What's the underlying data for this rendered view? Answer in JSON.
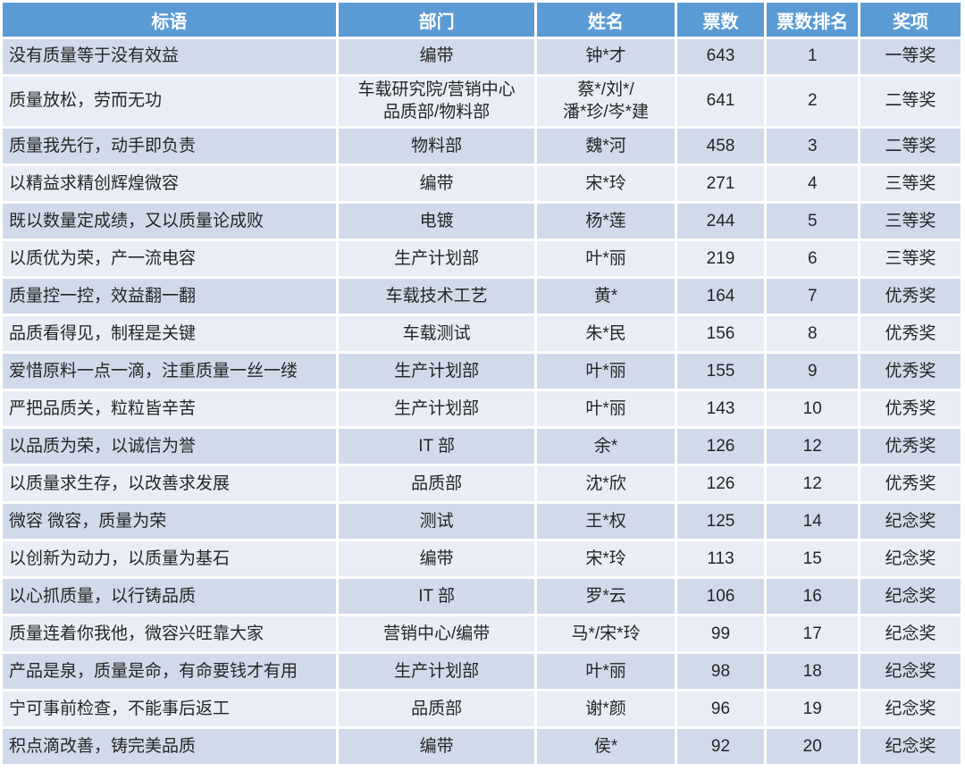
{
  "table": {
    "columns": [
      "标语",
      "部门",
      "姓名",
      "票数",
      "票数排名",
      "奖项"
    ],
    "rows": [
      {
        "slogan": "没有质量等于没有效益",
        "department": "编带",
        "name": "钟*才",
        "votes": "643",
        "rank": "1",
        "award": "一等奖"
      },
      {
        "slogan": "质量放松，劳而无功",
        "department": "车载研究院/营销中心\n品质部/物料部",
        "name": "蔡*/刘*/\n潘*珍/岑*建",
        "votes": "641",
        "rank": "2",
        "award": "二等奖"
      },
      {
        "slogan": "质量我先行，动手即负责",
        "department": "物料部",
        "name": "魏*河",
        "votes": "458",
        "rank": "3",
        "award": "二等奖"
      },
      {
        "slogan": "以精益求精创辉煌微容",
        "department": "编带",
        "name": "宋*玲",
        "votes": "271",
        "rank": "4",
        "award": "三等奖"
      },
      {
        "slogan": "既以数量定成绩，又以质量论成败",
        "department": "电镀",
        "name": "杨*莲",
        "votes": "244",
        "rank": "5",
        "award": "三等奖"
      },
      {
        "slogan": "以质优为荣，产一流电容",
        "department": "生产计划部",
        "name": "叶*丽",
        "votes": "219",
        "rank": "6",
        "award": "三等奖"
      },
      {
        "slogan": "质量控一控，效益翻一翻",
        "department": "车载技术工艺",
        "name": "黄*",
        "votes": "164",
        "rank": "7",
        "award": "优秀奖"
      },
      {
        "slogan": "品质看得见，制程是关键",
        "department": "车载测试",
        "name": "朱*民",
        "votes": "156",
        "rank": "8",
        "award": "优秀奖"
      },
      {
        "slogan": "爱惜原料一点一滴，注重质量一丝一缕",
        "department": "生产计划部",
        "name": "叶*丽",
        "votes": "155",
        "rank": "9",
        "award": "优秀奖"
      },
      {
        "slogan": "严把品质关，粒粒皆辛苦",
        "department": "生产计划部",
        "name": "叶*丽",
        "votes": "143",
        "rank": "10",
        "award": "优秀奖"
      },
      {
        "slogan": "以品质为荣，以诚信为誉",
        "department": "IT 部",
        "name": "余*",
        "votes": "126",
        "rank": "12",
        "award": "优秀奖"
      },
      {
        "slogan": "以质量求生存，以改善求发展",
        "department": "品质部",
        "name": "沈*欣",
        "votes": "126",
        "rank": "12",
        "award": "优秀奖"
      },
      {
        "slogan": "微容 微容，质量为荣",
        "department": "测试",
        "name": "王*权",
        "votes": "125",
        "rank": "14",
        "award": "纪念奖"
      },
      {
        "slogan": "以创新为动力，以质量为基石",
        "department": "编带",
        "name": "宋*玲",
        "votes": "113",
        "rank": "15",
        "award": "纪念奖"
      },
      {
        "slogan": "以心抓质量，以行铸品质",
        "department": "IT 部",
        "name": "罗*云",
        "votes": "106",
        "rank": "16",
        "award": "纪念奖"
      },
      {
        "slogan": "质量连着你我他，微容兴旺靠大家",
        "department": "营销中心/编带",
        "name": "马*/宋*玲",
        "votes": "99",
        "rank": "17",
        "award": "纪念奖"
      },
      {
        "slogan": "产品是泉，质量是命，有命要钱才有用",
        "department": "生产计划部",
        "name": "叶*丽",
        "votes": "98",
        "rank": "18",
        "award": "纪念奖"
      },
      {
        "slogan": "宁可事前检查，不能事后返工",
        "department": "品质部",
        "name": "谢*颜",
        "votes": "96",
        "rank": "19",
        "award": "纪念奖"
      },
      {
        "slogan": "积点滴改善，铸完美品质",
        "department": "编带",
        "name": "侯*",
        "votes": "92",
        "rank": "20",
        "award": "纪念奖"
      }
    ]
  },
  "colors": {
    "header_bg": "#5B9BD5",
    "header_text": "#FFFFFF",
    "band_dark": "#D0DAEB",
    "band_light": "#E8EDF6",
    "body_text": "#262626",
    "page_bg": "#FFFFFF"
  }
}
